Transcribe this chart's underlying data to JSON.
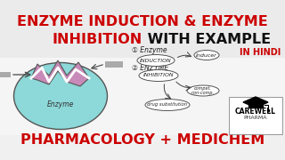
{
  "title_line1_red": "ENZYME INDUCTION & ENZYME",
  "title_line2_part_red": "INHIBITION",
  "title_line2_part_black": " WITH EXAMPLE",
  "bottom_text": "PHARMACOLOGY + MEDICHEM",
  "in_hindi": "IN HINDI",
  "logo_text1": "CAREWELL",
  "logo_text2": "PHARMA",
  "bg_top": "#ebebeb",
  "bg_middle": "#f5f5f5",
  "bg_bottom": "#f0f0f0",
  "title_red": "#cc0000",
  "title_black": "#111111",
  "bottom_text_color": "#cc0000",
  "enzyme_circle_color": "#8dd8d8",
  "enzyme_top_color": "#c88ab8",
  "in_hindi_color": "#cc0000",
  "font_size_title": 11.5,
  "font_size_bottom": 11.5
}
